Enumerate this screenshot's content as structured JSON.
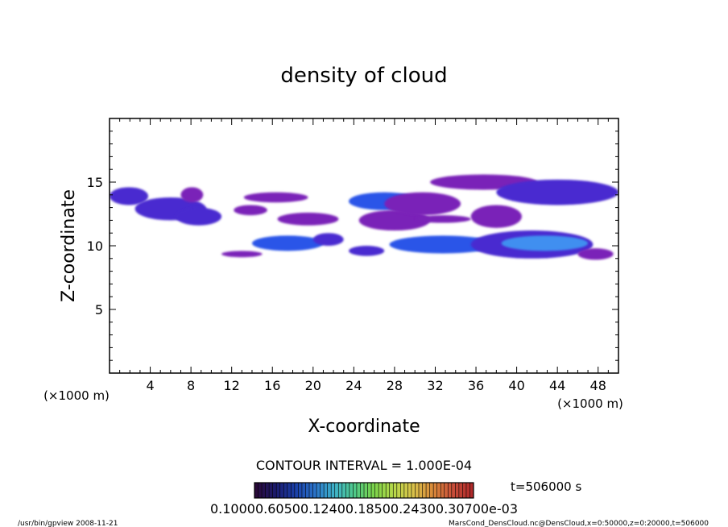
{
  "chart_data": {
    "type": "heatmap",
    "title": "density of cloud",
    "xlabel": "X-coordinate",
    "ylabel": "Z-coordinate",
    "x_unit": "(×1000 m)",
    "y_unit": "(×1000 m)",
    "xlim": [
      0,
      50
    ],
    "ylim": [
      0,
      20
    ],
    "x_ticks": [
      4,
      8,
      12,
      16,
      20,
      24,
      28,
      32,
      36,
      40,
      44,
      48
    ],
    "y_ticks": [
      5,
      10,
      15
    ],
    "contour_interval_label": "CONTOUR INTERVAL = 1.000E-04",
    "time_label": "t=506000 s",
    "colorbar_labels": "0.10000.60500.12400.18500.24300.30700e-03",
    "colorbar_colors": [
      "#2a0a3a",
      "#1b1b6e",
      "#1a3fa8",
      "#2a73c9",
      "#3fb3c9",
      "#4fc98a",
      "#7ad34a",
      "#b7d94a",
      "#d9c24a",
      "#d98a3a",
      "#c9503a",
      "#b02a2a"
    ],
    "cloud_colors": {
      "low": "#7a22b8",
      "mid": "#4a2ad0",
      "high": "#2a55e8",
      "peak": "#3f8ff0"
    },
    "cloud_regions": [
      {
        "xmin": 0.0,
        "xmax": 3.8,
        "zmin": 13.2,
        "zmax": 14.6,
        "level": "mid"
      },
      {
        "xmin": 2.5,
        "xmax": 9.5,
        "zmin": 12.0,
        "zmax": 13.8,
        "level": "mid"
      },
      {
        "xmin": 6.5,
        "xmax": 11.0,
        "zmin": 11.6,
        "zmax": 13.0,
        "level": "mid"
      },
      {
        "xmin": 7.0,
        "xmax": 9.2,
        "zmin": 13.4,
        "zmax": 14.6,
        "level": "low"
      },
      {
        "xmin": 12.2,
        "xmax": 15.5,
        "zmin": 12.4,
        "zmax": 13.2,
        "level": "low"
      },
      {
        "xmin": 13.2,
        "xmax": 19.5,
        "zmin": 13.4,
        "zmax": 14.2,
        "level": "low"
      },
      {
        "xmin": 16.5,
        "xmax": 22.5,
        "zmin": 11.6,
        "zmax": 12.6,
        "level": "low"
      },
      {
        "xmin": 14.0,
        "xmax": 21.0,
        "zmin": 9.6,
        "zmax": 10.8,
        "level": "high"
      },
      {
        "xmin": 20.0,
        "xmax": 23.0,
        "zmin": 10.0,
        "zmax": 11.0,
        "level": "mid"
      },
      {
        "xmin": 11.0,
        "xmax": 15.0,
        "zmin": 9.1,
        "zmax": 9.6,
        "level": "low"
      },
      {
        "xmin": 23.5,
        "xmax": 30.5,
        "zmin": 12.8,
        "zmax": 14.2,
        "level": "high"
      },
      {
        "xmin": 24.5,
        "xmax": 31.5,
        "zmin": 11.2,
        "zmax": 12.8,
        "level": "low"
      },
      {
        "xmin": 30.0,
        "xmax": 35.5,
        "zmin": 11.8,
        "zmax": 12.4,
        "level": "low"
      },
      {
        "xmin": 27.0,
        "xmax": 34.5,
        "zmin": 12.4,
        "zmax": 14.2,
        "level": "low"
      },
      {
        "xmin": 31.5,
        "xmax": 42.0,
        "zmin": 14.4,
        "zmax": 15.6,
        "level": "low"
      },
      {
        "xmin": 38.0,
        "xmax": 50.0,
        "zmin": 13.2,
        "zmax": 15.2,
        "level": "mid"
      },
      {
        "xmin": 35.5,
        "xmax": 40.5,
        "zmin": 11.4,
        "zmax": 13.2,
        "level": "low"
      },
      {
        "xmin": 23.5,
        "xmax": 27.0,
        "zmin": 9.2,
        "zmax": 10.0,
        "level": "mid"
      },
      {
        "xmin": 27.5,
        "xmax": 38.0,
        "zmin": 9.4,
        "zmax": 10.8,
        "level": "high"
      },
      {
        "xmin": 35.5,
        "xmax": 47.5,
        "zmin": 9.0,
        "zmax": 11.2,
        "level": "mid"
      },
      {
        "xmin": 38.5,
        "xmax": 47.0,
        "zmin": 9.6,
        "zmax": 10.8,
        "level": "peak"
      },
      {
        "xmin": 46.0,
        "xmax": 49.5,
        "zmin": 8.9,
        "zmax": 9.8,
        "level": "low"
      }
    ]
  },
  "footer": {
    "left": "/usr/bin/gpview  2008-11-21",
    "right": "MarsCond_DensCloud.nc@DensCloud,x=0:50000,z=0:20000,t=506000"
  }
}
